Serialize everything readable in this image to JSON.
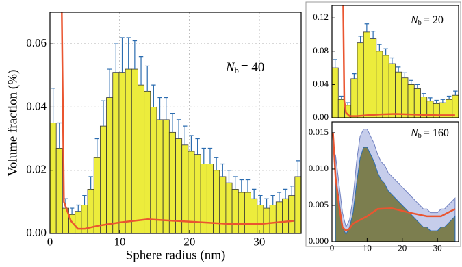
{
  "chart_data": [
    {
      "type": "histogram",
      "annotation": {
        "symbol": "N",
        "subscript": "b",
        "text": "= 40"
      },
      "x_label": "Sphere radius (nm)",
      "y_label": "Volume fraction (%)",
      "bins": [
        0,
        0.9,
        1.8,
        2.7,
        3.6,
        4.5,
        5.4,
        6.3,
        7.2,
        8.1,
        9,
        9.9,
        10.8,
        11.7,
        12.6,
        13.5,
        14.4,
        15.3,
        16.2,
        17.1,
        18,
        18.9,
        19.8,
        20.7,
        21.6,
        22.5,
        23.4,
        24.3,
        25.2,
        26.1,
        27,
        27.9,
        28.8,
        29.7,
        30.6,
        31.5,
        32.4,
        33.3,
        34.2,
        35.1,
        36
      ],
      "values": [
        0.035,
        0.027,
        0.008,
        0.006,
        0.007,
        0.009,
        0.014,
        0.024,
        0.034,
        0.043,
        0.051,
        0.051,
        0.052,
        0.052,
        0.047,
        0.045,
        0.04,
        0.036,
        0.036,
        0.032,
        0.03,
        0.028,
        0.026,
        0.025,
        0.022,
        0.022,
        0.02,
        0.018,
        0.016,
        0.014,
        0.013,
        0.013,
        0.011,
        0.009,
        0.008,
        0.009,
        0.01,
        0.011,
        0.012,
        0.018
      ],
      "errors": [
        0.011,
        0.008,
        0.003,
        0.002,
        0.002,
        0.003,
        0.004,
        0.006,
        0.008,
        0.009,
        0.009,
        0.011,
        0.01,
        0.009,
        0.009,
        0.008,
        0.007,
        0.007,
        0.007,
        0.006,
        0.006,
        0.006,
        0.005,
        0.005,
        0.005,
        0.005,
        0.004,
        0.004,
        0.004,
        0.004,
        0.004,
        0.004,
        0.003,
        0.003,
        0.003,
        0.003,
        0.003,
        0.003,
        0.003,
        0.005
      ],
      "color": "#ecec3c",
      "error_color": "#2b6cb0",
      "curve": {
        "color": "#ea5530",
        "x": [
          1.7,
          2,
          3,
          4,
          5,
          7,
          10,
          14,
          18,
          22,
          26,
          30,
          35
        ],
        "y": [
          0.07,
          0.01,
          0.004,
          0.0015,
          0.0015,
          0.0025,
          0.0035,
          0.0045,
          0.004,
          0.0035,
          0.003,
          0.003,
          0.004
        ]
      },
      "xlim": [
        0,
        36
      ],
      "ylim": [
        0,
        0.07
      ],
      "xticks": [
        0,
        10,
        20,
        30
      ],
      "yticks": [
        {
          "value": 0,
          "label": "0.00"
        },
        {
          "value": 0.02,
          "label": "0.02"
        },
        {
          "value": 0.04,
          "label": "0.04"
        },
        {
          "value": 0.06,
          "label": "0.06"
        }
      ],
      "grid": true
    },
    {
      "type": "histogram",
      "annotation": {
        "symbol": "N",
        "subscript": "b",
        "text": "= 20"
      },
      "bins": [
        0,
        1.8,
        3.6,
        5.4,
        7.2,
        9,
        10.8,
        12.6,
        14.4,
        16.2,
        18,
        19.8,
        21.6,
        23.4,
        25.2,
        27,
        28.8,
        30.6,
        32.4,
        34.2,
        36
      ],
      "values": [
        0.06,
        0.022,
        0.015,
        0.047,
        0.09,
        0.103,
        0.095,
        0.08,
        0.075,
        0.065,
        0.055,
        0.048,
        0.04,
        0.035,
        0.025,
        0.02,
        0.017,
        0.018,
        0.022,
        0.027
      ],
      "errors": [
        0.01,
        0.004,
        0.003,
        0.006,
        0.008,
        0.01,
        0.009,
        0.008,
        0.008,
        0.007,
        0.006,
        0.006,
        0.005,
        0.005,
        0.004,
        0.004,
        0.004,
        0.004,
        0.004,
        0.005
      ],
      "color": "#ecec3c",
      "error_color": "#2b6cb0",
      "curve": {
        "color": "#ea5530",
        "x": [
          3.2,
          3.5,
          4,
          5,
          7,
          10,
          14,
          18,
          22,
          26,
          30,
          35
        ],
        "y": [
          0.135,
          0.02,
          0.006,
          0.002,
          0.002,
          0.003,
          0.004,
          0.0045,
          0.004,
          0.0035,
          0.003,
          0.003
        ]
      },
      "xlim": [
        0,
        36
      ],
      "ylim": [
        0,
        0.135
      ],
      "yticks": [
        {
          "value": 0,
          "label": "0.00"
        },
        {
          "value": 0.04,
          "label": "0.04"
        },
        {
          "value": 0.08,
          "label": "0.08"
        },
        {
          "value": 0.12,
          "label": "0.12"
        }
      ],
      "grid": false
    },
    {
      "type": "area",
      "annotation": {
        "symbol": "N",
        "subscript": "b",
        "text": "= 160"
      },
      "x": [
        1,
        2,
        3,
        4,
        5,
        6,
        7,
        8,
        9,
        10,
        11,
        12,
        13,
        14,
        15,
        16,
        17,
        18,
        19,
        20,
        21,
        22,
        23,
        24,
        25,
        26,
        27,
        28,
        29,
        30,
        31,
        32,
        33,
        34,
        35
      ],
      "series": [
        {
          "color": "#b8c0e6",
          "values": [
            0.012,
            0.008,
            0.004,
            0.002,
            0.003,
            0.006,
            0.011,
            0.0145,
            0.0155,
            0.0155,
            0.0145,
            0.0135,
            0.012,
            0.011,
            0.0105,
            0.0095,
            0.009,
            0.0085,
            0.008,
            0.0075,
            0.007,
            0.0065,
            0.006,
            0.0055,
            0.005,
            0.0045,
            0.0045,
            0.004,
            0.004,
            0.004,
            0.0045,
            0.0045,
            0.005,
            0.0055,
            0.006
          ]
        },
        {
          "color": "#6e7034",
          "values": [
            0.009,
            0.006,
            0.002,
            0.001,
            0.002,
            0.004,
            0.008,
            0.0115,
            0.013,
            0.013,
            0.012,
            0.011,
            0.0095,
            0.0085,
            0.008,
            0.007,
            0.0065,
            0.006,
            0.0055,
            0.005,
            0.0045,
            0.004,
            0.0035,
            0.003,
            0.0025,
            0.002,
            0.002,
            0.0015,
            0.0015,
            0.0015,
            0.002,
            0.002,
            0.0025,
            0.003,
            0.0035
          ]
        }
      ],
      "curve": {
        "color": "#ea5530",
        "x": [
          0.3,
          1,
          2,
          3,
          4,
          5,
          6,
          8,
          10,
          13,
          17,
          22,
          27,
          31,
          35
        ],
        "y": [
          0.015,
          0.009,
          0.005,
          0.002,
          0.0015,
          0.0018,
          0.0025,
          0.003,
          0.0035,
          0.0045,
          0.0046,
          0.004,
          0.0035,
          0.0035,
          0.0045
        ]
      },
      "xlim": [
        0,
        36
      ],
      "ylim": [
        0,
        0.0165
      ],
      "xticks": [
        0,
        10,
        20,
        30
      ],
      "yticks": [
        {
          "value": 0,
          "label": "0.000"
        },
        {
          "value": 0.005,
          "label": "0.005"
        },
        {
          "value": 0.01,
          "label": "0.010"
        },
        {
          "value": 0.015,
          "label": "0.015"
        }
      ],
      "grid": false
    }
  ]
}
